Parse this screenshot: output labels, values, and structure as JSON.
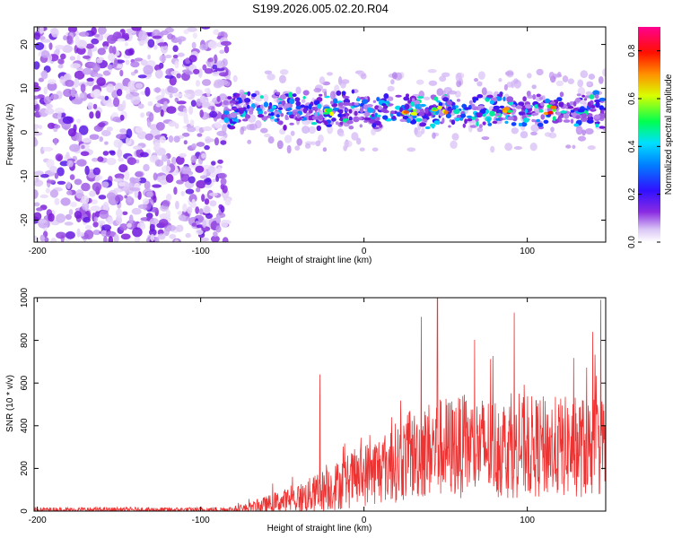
{
  "title": "S199.2026.005.02.20.R04",
  "chart_data": [
    {
      "type": "heatmap",
      "title": "S199.2026.005.02.20.R04",
      "xlabel": "Height of straight line (km)",
      "ylabel": "Frequency (Hz)",
      "xlim": [
        -202,
        148
      ],
      "ylim": [
        -25,
        24
      ],
      "xticks": [
        -200,
        -100,
        0,
        100
      ],
      "yticks": [
        -20,
        -10,
        0,
        10,
        20
      ],
      "noise_region_x": [
        -202,
        -85
      ],
      "signal_region_x": [
        -85,
        148
      ],
      "signal_band_center_hz": 5,
      "signal_band_halfwidth_hz": 4,
      "peak_x": [
        -22,
        28,
        47,
        90,
        115
      ],
      "colorbar": {
        "label": "Normalized spectral amplitude",
        "range": [
          0.0,
          0.9
        ],
        "ticks": [
          0.0,
          0.2,
          0.4,
          0.6,
          0.8
        ],
        "colormap": [
          "#ffffff",
          "#c9a6f2",
          "#7a18d8",
          "#1a1aff",
          "#00d8ff",
          "#00ff40",
          "#f0ff00",
          "#ff8000",
          "#ff0000",
          "#ff0080"
        ]
      }
    },
    {
      "type": "line",
      "xlabel": "Height of straight line (km)",
      "ylabel": "SNR (10 * v/v)",
      "xlim": [
        -202,
        148
      ],
      "ylim": [
        0,
        1000
      ],
      "xticks": [
        -200,
        -100,
        0,
        100
      ],
      "yticks": [
        0,
        200,
        400,
        600,
        800,
        1000
      ],
      "color": "#ee3333",
      "envelope": {
        "x": [
          -202,
          -150,
          -100,
          -80,
          -70,
          -60,
          -50,
          -40,
          -30,
          -20,
          -10,
          0,
          10,
          20,
          30,
          40,
          50,
          60,
          70,
          80,
          90,
          100,
          110,
          120,
          130,
          140,
          148
        ],
        "base": [
          6,
          6,
          6,
          8,
          15,
          30,
          45,
          60,
          80,
          110,
          140,
          170,
          200,
          230,
          260,
          290,
          300,
          300,
          300,
          300,
          300,
          300,
          300,
          300,
          300,
          300,
          300
        ],
        "amp": [
          12,
          12,
          12,
          14,
          25,
          40,
          55,
          70,
          90,
          110,
          130,
          150,
          170,
          190,
          210,
          230,
          240,
          240,
          240,
          240,
          240,
          240,
          240,
          240,
          240,
          240,
          240
        ]
      },
      "spikes": [
        {
          "x": -27,
          "y": 640
        },
        {
          "x": 35,
          "y": 910
        },
        {
          "x": 45,
          "y": 1000
        },
        {
          "x": 92,
          "y": 930
        },
        {
          "x": 140,
          "y": 840
        },
        {
          "x": 145,
          "y": 990
        }
      ]
    }
  ]
}
